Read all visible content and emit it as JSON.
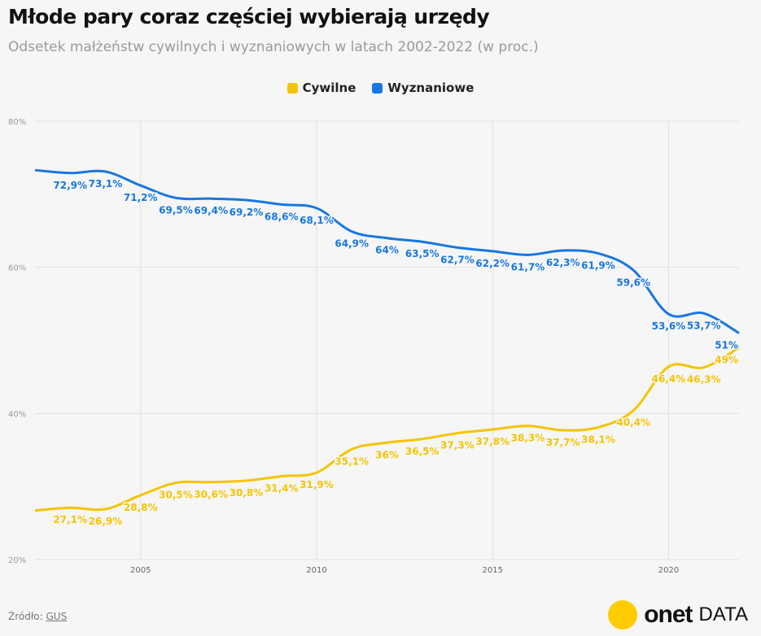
{
  "title": "Młode pary coraz częściej wybierają urzędy",
  "subtitle": "Odsetek małżeństw cywilnych i wyznaniowych w latach 2002-2022 (w proc.)",
  "source_label": "Źródło:",
  "source_link": "GUS",
  "brand": {
    "name": "onet",
    "suffix": "DATA",
    "color": "#ffcc00"
  },
  "colors": {
    "cywilne": "#f5c400",
    "wyznaniowe": "#1877e0",
    "grid": "#e2e2e2",
    "axis_text": "#999999"
  },
  "chart_data": {
    "type": "line",
    "title": "Młode pary coraz częściej wybierają urzędy",
    "subtitle": "Odsetek małżeństw cywilnych i wyznaniowych w latach 2002-2022 (w proc.)",
    "x": [
      2002,
      2003,
      2004,
      2005,
      2006,
      2007,
      2008,
      2009,
      2010,
      2011,
      2012,
      2013,
      2014,
      2015,
      2016,
      2017,
      2018,
      2019,
      2020,
      2021,
      2022
    ],
    "xlim": [
      2002,
      2022
    ],
    "ylim": [
      20,
      80
    ],
    "x_ticks": [
      2005,
      2010,
      2015,
      2020
    ],
    "y_ticks": [
      20,
      40,
      60,
      80
    ],
    "y_tick_labels": [
      "20%",
      "40%",
      "60%",
      "80%"
    ],
    "grid": true,
    "legend_position": "top-center",
    "series": [
      {
        "name": "Cywilne",
        "values": [
          26.7,
          27.1,
          26.9,
          28.8,
          30.5,
          30.6,
          30.8,
          31.4,
          31.9,
          35.1,
          36,
          36.5,
          37.3,
          37.8,
          38.3,
          37.7,
          38.1,
          40.4,
          46.4,
          46.3,
          49
        ],
        "labels": [
          "",
          "27,1%",
          "26,9%",
          "28,8%",
          "30,5%",
          "30,6%",
          "30,8%",
          "31,4%",
          "31,9%",
          "35,1%",
          "36%",
          "36,5%",
          "37,3%",
          "37,8%",
          "38,3%",
          "37,7%",
          "38,1%",
          "40,4%",
          "46,4%",
          "46,3%",
          "49%"
        ]
      },
      {
        "name": "Wyznaniowe",
        "values": [
          73.3,
          72.9,
          73.1,
          71.2,
          69.5,
          69.4,
          69.2,
          68.6,
          68.1,
          64.9,
          64,
          63.5,
          62.7,
          62.2,
          61.7,
          62.3,
          61.9,
          59.6,
          53.6,
          53.7,
          51
        ],
        "labels": [
          "",
          "72,9%",
          "73,1%",
          "71,2%",
          "69,5%",
          "69,4%",
          "69,2%",
          "68,6%",
          "68,1%",
          "64,9%",
          "64%",
          "63,5%",
          "62,7%",
          "62,2%",
          "61,7%",
          "62,3%",
          "61,9%",
          "59,6%",
          "53,6%",
          "53,7%",
          "51%"
        ]
      }
    ]
  }
}
